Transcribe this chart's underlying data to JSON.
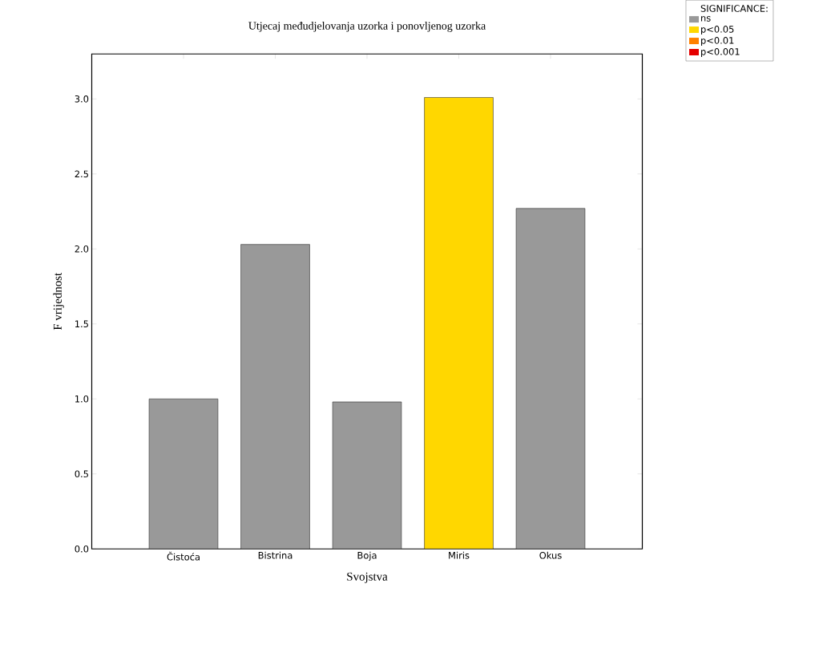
{
  "chart_data": {
    "type": "bar",
    "title": "Utjecaj međudjelovanja uzorka i ponovljenog uzorka",
    "xlabel": "Svojstva",
    "ylabel": "F vrijednost",
    "legend_title": "SIGNIFICANCE:",
    "legend": "top right",
    "stacked": true,
    "categories": [
      "Čistoća",
      "Bistrina",
      "Boja",
      "Miris",
      "Okus"
    ],
    "series": [
      {
        "name": "ns",
        "color": "#999999",
        "values": [
          1.0,
          2.03,
          0.98,
          null,
          2.27
        ]
      },
      {
        "name": "p<0.05",
        "color": "#ffd700",
        "values": [
          null,
          null,
          null,
          3.01,
          null
        ]
      },
      {
        "name": "p<0.01",
        "color": "#ff8000",
        "values": [
          null,
          null,
          null,
          null,
          null
        ]
      },
      {
        "name": "p<0.001",
        "color": "#e50000",
        "values": [
          null,
          null,
          null,
          null,
          null
        ]
      }
    ],
    "ylim": [
      0,
      3.3
    ],
    "yticks": [
      {
        "value": 0,
        "label": "0.0"
      },
      {
        "value": 0.5,
        "label": "0.5"
      },
      {
        "value": 1,
        "label": "1.0"
      },
      {
        "value": 1.5,
        "label": "1.5"
      },
      {
        "value": 2,
        "label": "2.0"
      },
      {
        "value": 2.5,
        "label": "2.5"
      },
      {
        "value": 3,
        "label": "3.0"
      }
    ]
  }
}
